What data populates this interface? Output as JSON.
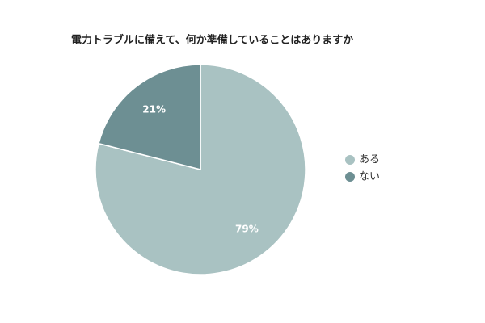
{
  "chart_data": {
    "type": "pie",
    "title": "電力トラブルに備えて、何か準備していることはありますか",
    "categories": [
      "ある",
      "ない"
    ],
    "values": [
      79,
      21
    ],
    "value_labels": [
      "79%",
      "21%"
    ],
    "colors": [
      "#a9c2c2",
      "#6d8f93"
    ],
    "legend": "right"
  }
}
